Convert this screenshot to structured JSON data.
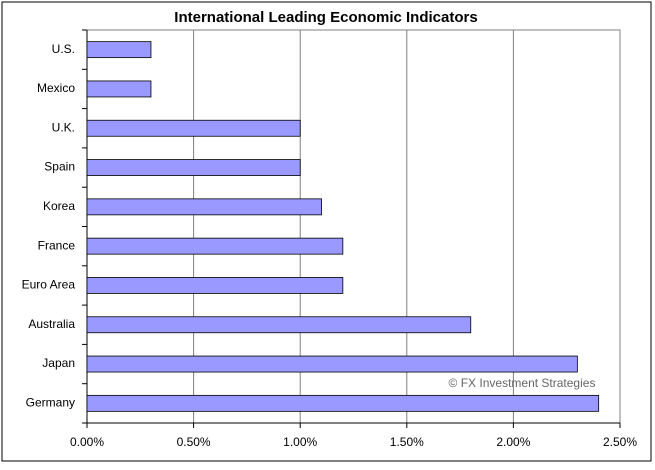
{
  "chart_data": {
    "type": "bar",
    "orientation": "horizontal",
    "title": "International Leading Economic Indicators",
    "categories": [
      "U.S.",
      "Mexico",
      "U.K.",
      "Spain",
      "Korea",
      "France",
      "Euro Area",
      "Australia",
      "Japan",
      "Germany"
    ],
    "values": [
      0.3,
      0.3,
      1.0,
      1.0,
      1.1,
      1.2,
      1.2,
      1.8,
      2.3,
      2.4
    ],
    "color": "#9999ff",
    "xlim": [
      0,
      2.5
    ],
    "xticks": [
      {
        "value": 0,
        "label": "0.00%"
      },
      {
        "value": 0.5,
        "label": "0.50%"
      },
      {
        "value": 1.0,
        "label": "1.00%"
      },
      {
        "value": 1.5,
        "label": "1.50%"
      },
      {
        "value": 2.0,
        "label": "2.00%"
      },
      {
        "value": 2.5,
        "label": "2.50%"
      }
    ],
    "grid": true,
    "annotation": "© FX Investment Strategies"
  }
}
